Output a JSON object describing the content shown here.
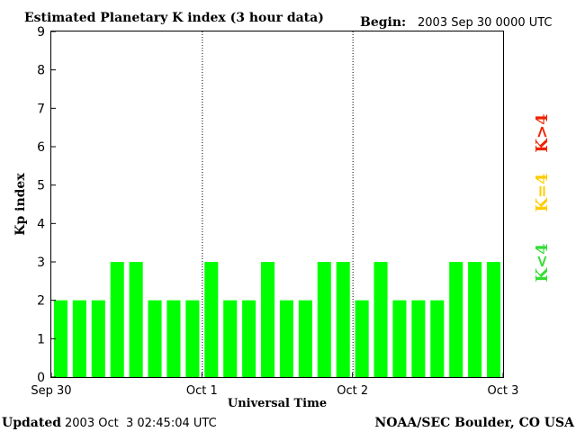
{
  "chart_data": {
    "type": "bar",
    "title": "Estimated Planetary K index (3 hour data)",
    "begin_label": "Begin:",
    "begin_value": "2003 Sep 30 0000 UTC",
    "ylabel": "Kp index",
    "xlabel": "Universal Time",
    "ylim": [
      0,
      9
    ],
    "yticks": [
      "0",
      "1",
      "2",
      "3",
      "4",
      "5",
      "6",
      "7",
      "8",
      "9"
    ],
    "xticks": [
      "Sep 30",
      "Oct 1",
      "Oct 2",
      "Oct 3"
    ],
    "values": [
      2,
      2,
      2,
      3,
      3,
      2,
      2,
      2,
      3,
      2,
      2,
      3,
      2,
      2,
      3,
      3,
      2,
      3,
      2,
      2,
      2,
      3,
      3,
      3
    ],
    "bar_color": "#00ff00",
    "grid": false,
    "day_separators": "dotted",
    "legend": [
      {
        "label": "K<4",
        "color": "#33dd33"
      },
      {
        "label": "K=4",
        "color": "#ffcc00"
      },
      {
        "label": "K>4",
        "color": "#ee2200"
      }
    ],
    "legend_placement": "right"
  },
  "footer": {
    "updated_label": "Updated",
    "updated_value": "2003 Oct  3 02:45:04 UTC",
    "source": "NOAA/SEC Boulder, CO USA"
  }
}
